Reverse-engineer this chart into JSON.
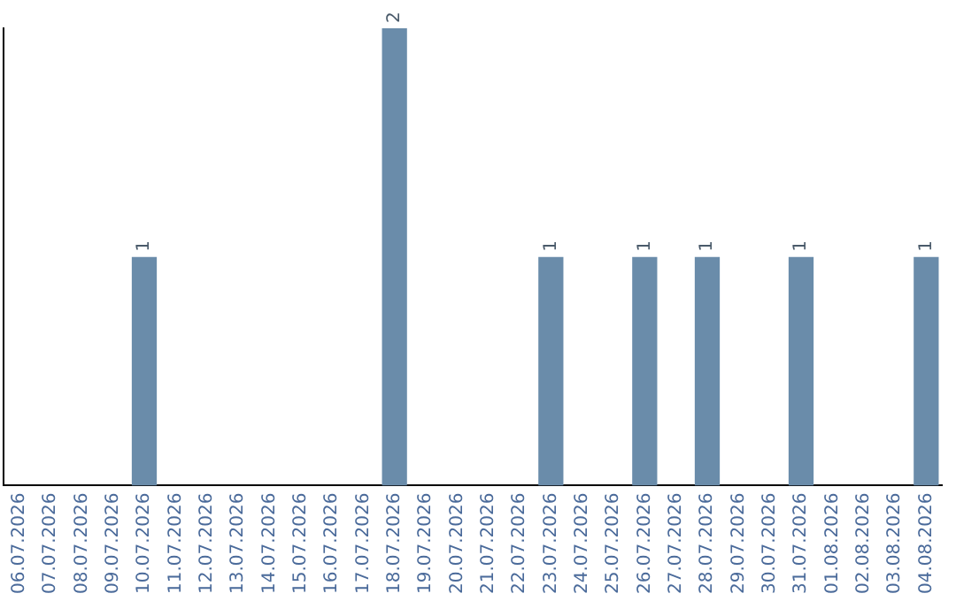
{
  "chart_data": {
    "type": "bar",
    "categories": [
      "06.07.2026",
      "07.07.2026",
      "08.07.2026",
      "09.07.2026",
      "10.07.2026",
      "11.07.2026",
      "12.07.2026",
      "13.07.2026",
      "14.07.2026",
      "15.07.2026",
      "16.07.2026",
      "17.07.2026",
      "18.07.2026",
      "19.07.2026",
      "20.07.2026",
      "21.07.2026",
      "22.07.2026",
      "23.07.2026",
      "24.07.2026",
      "25.07.2026",
      "26.07.2026",
      "27.07.2026",
      "28.07.2026",
      "29.07.2026",
      "30.07.2026",
      "31.07.2026",
      "01.08.2026",
      "02.08.2026",
      "03.08.2026",
      "04.08.2026"
    ],
    "values": [
      0,
      0,
      0,
      0,
      1,
      0,
      0,
      0,
      0,
      0,
      0,
      0,
      2,
      0,
      0,
      0,
      0,
      1,
      0,
      0,
      1,
      0,
      1,
      0,
      0,
      1,
      0,
      0,
      0,
      1
    ],
    "value_labels": [
      null,
      null,
      null,
      null,
      "1",
      null,
      null,
      null,
      null,
      null,
      null,
      null,
      "2",
      null,
      null,
      null,
      null,
      "1",
      null,
      null,
      "1",
      null,
      "1",
      null,
      null,
      "1",
      null,
      null,
      null,
      "1"
    ],
    "color": "#6a8caa",
    "grid": false,
    "legend": false,
    "tick_labels": "x"
  }
}
